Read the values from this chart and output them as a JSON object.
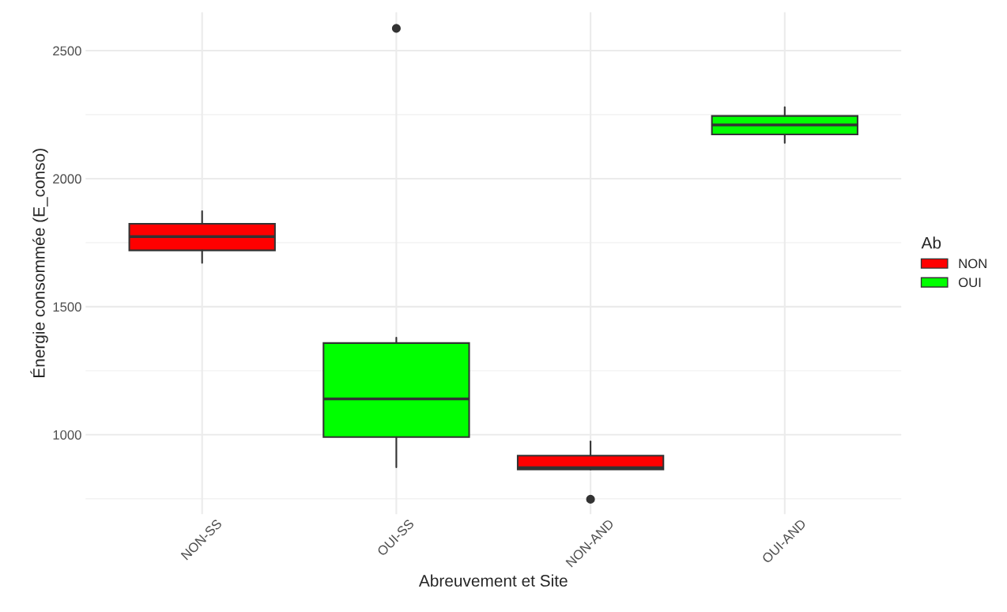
{
  "chart_data": {
    "type": "box",
    "xlabel": "Abreuvement et Site",
    "ylabel": "Énergie consommée (E_conso)",
    "legend_title": "Ab",
    "categories": [
      "NON-SS",
      "OUI-SS",
      "NON-AND",
      "OUI-AND"
    ],
    "series": [
      {
        "name": "NON",
        "color": "#ff0000",
        "boxes": [
          {
            "low": 1671,
            "q1": 1720,
            "median": 1774,
            "q3": 1824,
            "high": 1873
          },
          null,
          {
            "low": 864,
            "q1": 864,
            "median": 871,
            "q3": 918,
            "high": 974,
            "outliers": [
              748
            ]
          },
          null
        ]
      },
      {
        "name": "OUI",
        "color": "#00ff00",
        "boxes": [
          null,
          {
            "low": 873,
            "q1": 991,
            "median": 1140,
            "q3": 1358,
            "high": 1379,
            "outliers": [
              2587
            ]
          },
          null,
          {
            "low": 2140,
            "q1": 2173,
            "median": 2210,
            "q3": 2245,
            "high": 2279
          }
        ]
      }
    ],
    "ylim": [
      690,
      2650
    ],
    "yticks": [
      1000,
      1500,
      2000,
      2500
    ],
    "grid": true,
    "legend": "right"
  }
}
